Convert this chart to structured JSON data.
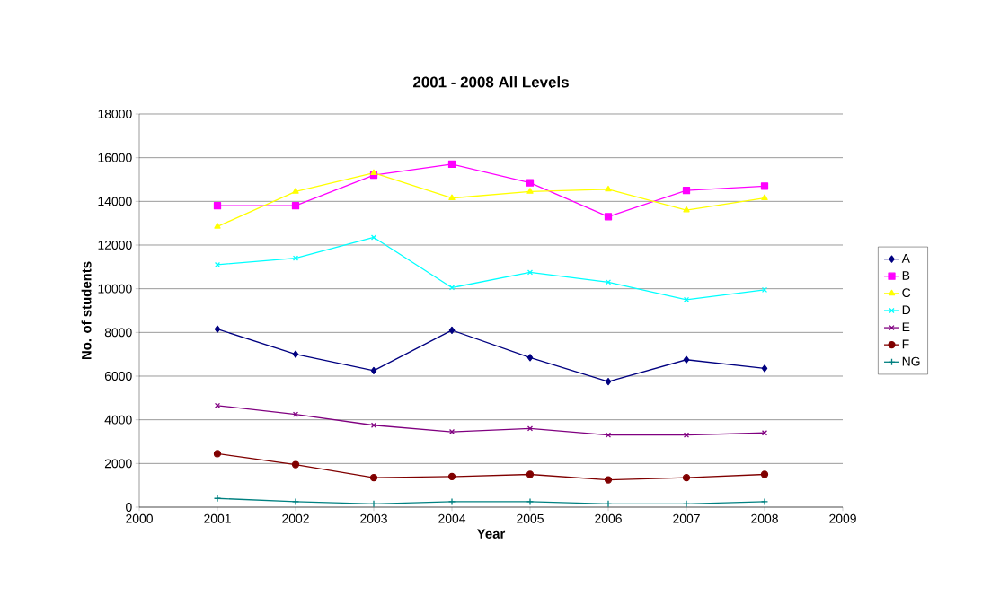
{
  "chart_data": {
    "type": "line",
    "title": "2001 - 2008 All Levels",
    "xlabel": "Year",
    "ylabel": "No. of students",
    "x": [
      2001,
      2002,
      2003,
      2004,
      2005,
      2006,
      2007,
      2008
    ],
    "series": [
      {
        "name": "A",
        "color": "#000080",
        "marker": "diamond",
        "values": [
          8150,
          7000,
          6250,
          8100,
          6850,
          5750,
          6750,
          6350
        ]
      },
      {
        "name": "B",
        "color": "#ff00ff",
        "marker": "square",
        "values": [
          13800,
          13800,
          15200,
          15700,
          14850,
          13300,
          14500,
          14700
        ]
      },
      {
        "name": "C",
        "color": "#ffff00",
        "marker": "triangle",
        "values": [
          12850,
          14450,
          15300,
          14150,
          14450,
          14550,
          13600,
          14150
        ]
      },
      {
        "name": "D",
        "color": "#00ffff",
        "marker": "cross",
        "values": [
          11100,
          11400,
          12350,
          10050,
          10750,
          10300,
          9500,
          9950
        ]
      },
      {
        "name": "E",
        "color": "#800080",
        "marker": "cross",
        "values": [
          4650,
          4250,
          3750,
          3450,
          3600,
          3300,
          3300,
          3400
        ]
      },
      {
        "name": "F",
        "color": "#800000",
        "marker": "circle",
        "values": [
          2450,
          1950,
          1350,
          1400,
          1500,
          1250,
          1350,
          1500
        ]
      },
      {
        "name": "NG",
        "color": "#008080",
        "marker": "plus",
        "values": [
          400,
          250,
          150,
          250,
          250,
          150,
          150,
          250
        ]
      }
    ],
    "xlim": [
      2000,
      2009
    ],
    "xticks": [
      2000,
      2001,
      2002,
      2003,
      2004,
      2005,
      2006,
      2007,
      2008,
      2009
    ],
    "ylim": [
      0,
      18000
    ],
    "yticks": [
      0,
      2000,
      4000,
      6000,
      8000,
      10000,
      12000,
      14000,
      16000,
      18000
    ],
    "grid": "y",
    "legend": "right",
    "line_style": "solid"
  }
}
